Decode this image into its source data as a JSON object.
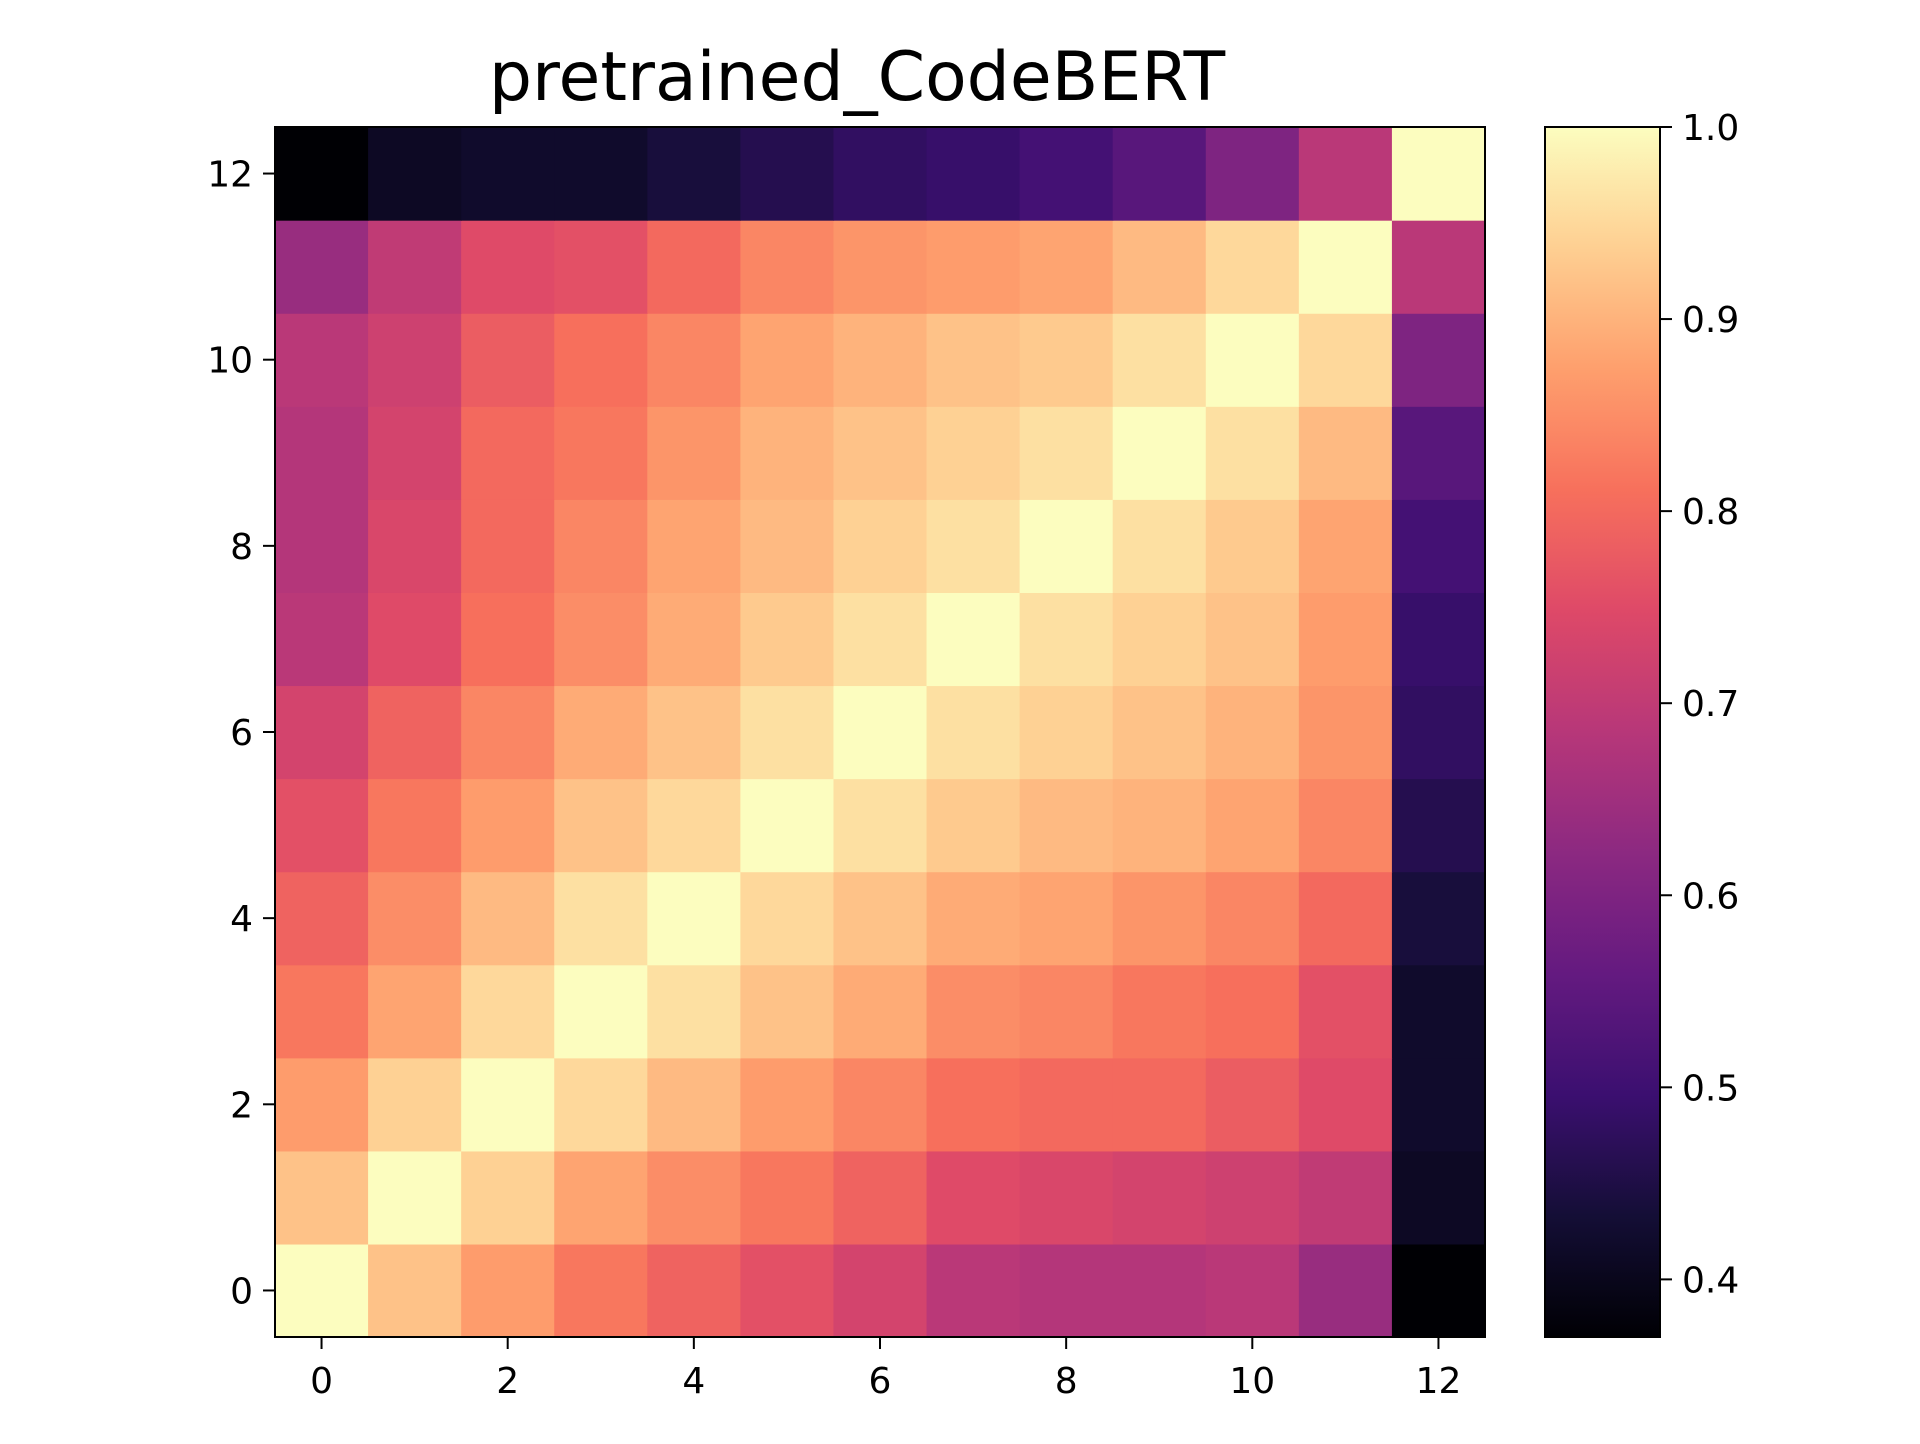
{
  "chart_data": {
    "type": "heatmap",
    "title": "pretrained_CodeBERT",
    "xlabel": "",
    "ylabel": "",
    "colormap": "magma",
    "x": [
      0,
      1,
      2,
      3,
      4,
      5,
      6,
      7,
      8,
      9,
      10,
      11,
      12
    ],
    "y": [
      0,
      1,
      2,
      3,
      4,
      5,
      6,
      7,
      8,
      9,
      10,
      11,
      12
    ],
    "x_ticks": [
      0,
      2,
      4,
      6,
      8,
      10,
      12
    ],
    "y_ticks": [
      0,
      2,
      4,
      6,
      8,
      10,
      12
    ],
    "y_origin": "bottom",
    "vmin": 0.37,
    "vmax": 1.0,
    "colorbar": {
      "ticks": [
        0.4,
        0.5,
        0.6,
        0.7,
        0.8,
        0.9,
        1.0
      ],
      "tick_labels": [
        "0.4",
        "0.5",
        "0.6",
        "0.7",
        "0.8",
        "0.9",
        "1.0"
      ],
      "placement": "right"
    },
    "values": [
      [
        1.0,
        0.92,
        0.87,
        0.82,
        0.79,
        0.76,
        0.73,
        0.69,
        0.68,
        0.68,
        0.69,
        0.64,
        0.37
      ],
      [
        0.92,
        1.0,
        0.94,
        0.88,
        0.85,
        0.82,
        0.79,
        0.75,
        0.74,
        0.73,
        0.72,
        0.7,
        0.41
      ],
      [
        0.87,
        0.94,
        1.0,
        0.95,
        0.91,
        0.87,
        0.84,
        0.81,
        0.8,
        0.8,
        0.78,
        0.75,
        0.42
      ],
      [
        0.82,
        0.88,
        0.95,
        1.0,
        0.96,
        0.92,
        0.89,
        0.85,
        0.84,
        0.82,
        0.81,
        0.76,
        0.42
      ],
      [
        0.79,
        0.85,
        0.91,
        0.96,
        1.0,
        0.95,
        0.92,
        0.89,
        0.88,
        0.86,
        0.84,
        0.8,
        0.44
      ],
      [
        0.76,
        0.82,
        0.87,
        0.92,
        0.95,
        1.0,
        0.96,
        0.93,
        0.91,
        0.9,
        0.88,
        0.84,
        0.46
      ],
      [
        0.73,
        0.79,
        0.84,
        0.89,
        0.92,
        0.96,
        1.0,
        0.96,
        0.94,
        0.92,
        0.9,
        0.86,
        0.48
      ],
      [
        0.69,
        0.75,
        0.81,
        0.85,
        0.89,
        0.93,
        0.96,
        1.0,
        0.96,
        0.94,
        0.92,
        0.87,
        0.49
      ],
      [
        0.68,
        0.74,
        0.8,
        0.84,
        0.88,
        0.91,
        0.94,
        0.96,
        1.0,
        0.96,
        0.93,
        0.88,
        0.51
      ],
      [
        0.68,
        0.73,
        0.8,
        0.82,
        0.86,
        0.9,
        0.92,
        0.94,
        0.96,
        1.0,
        0.96,
        0.91,
        0.54
      ],
      [
        0.69,
        0.72,
        0.78,
        0.81,
        0.84,
        0.88,
        0.9,
        0.92,
        0.93,
        0.96,
        1.0,
        0.95,
        0.6
      ],
      [
        0.64,
        0.7,
        0.75,
        0.76,
        0.8,
        0.84,
        0.86,
        0.87,
        0.88,
        0.91,
        0.95,
        1.0,
        0.69
      ],
      [
        0.37,
        0.41,
        0.42,
        0.42,
        0.44,
        0.46,
        0.48,
        0.49,
        0.51,
        0.54,
        0.6,
        0.69,
        1.0
      ]
    ]
  }
}
